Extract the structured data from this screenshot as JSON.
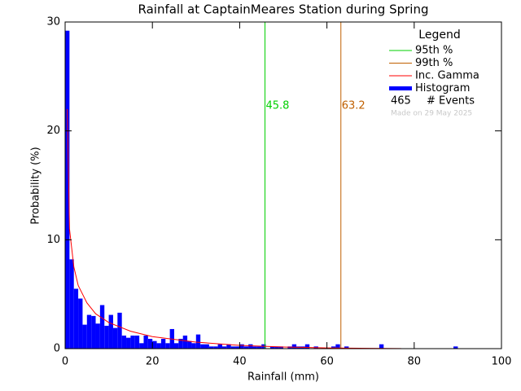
{
  "chart_data": {
    "type": "histogram",
    "title": "Rainfall at CaptainMeares Station during Spring",
    "xlabel": "Rainfall (mm)",
    "ylabel": "Probability (%)",
    "bins": [
      0,
      1,
      2,
      3,
      4,
      5,
      6,
      7,
      8,
      9,
      10,
      11,
      12,
      13,
      14,
      15,
      16,
      17,
      18,
      19,
      20,
      21,
      22,
      23,
      24,
      25,
      26,
      27,
      28,
      29,
      30,
      31,
      32,
      33,
      34,
      35,
      36,
      37,
      38,
      39,
      40,
      41,
      42,
      43,
      44,
      45,
      46,
      47,
      48,
      49,
      50,
      51,
      52,
      53,
      54,
      55,
      56,
      57,
      58,
      59,
      60,
      61,
      62,
      63,
      64,
      65,
      66,
      67,
      68,
      69,
      70,
      71,
      72,
      73,
      74,
      75,
      76,
      77,
      78,
      79,
      80,
      81,
      82,
      83,
      84,
      85,
      86,
      87,
      88,
      89,
      90,
      91,
      92,
      93,
      94,
      95,
      96,
      97,
      98,
      99,
      100
    ],
    "counts": [
      29.2,
      8.2,
      5.5,
      4.6,
      2.2,
      3.1,
      3.0,
      2.3,
      4.0,
      2.1,
      3.1,
      1.9,
      3.3,
      1.2,
      1.0,
      1.2,
      1.2,
      0.5,
      1.2,
      0.9,
      0.7,
      0.5,
      0.9,
      0.5,
      1.8,
      0.5,
      0.9,
      1.2,
      0.7,
      0.5,
      1.3,
      0.4,
      0.4,
      0.2,
      0.2,
      0.4,
      0.2,
      0.4,
      0.2,
      0.2,
      0.4,
      0.2,
      0.4,
      0.2,
      0.2,
      0.4,
      0,
      0.2,
      0.2,
      0.2,
      0,
      0.2,
      0.4,
      0.2,
      0.2,
      0.4,
      0,
      0.2,
      0,
      0,
      0,
      0.2,
      0.4,
      0,
      0.2,
      0,
      0,
      0,
      0,
      0,
      0,
      0,
      0.4,
      0,
      0,
      0,
      0,
      0,
      0,
      0,
      0,
      0,
      0,
      0,
      0,
      0,
      0,
      0,
      0,
      0.2,
      0,
      0,
      0,
      0,
      0,
      0,
      0,
      0,
      0,
      0
    ],
    "color": "#0000ff",
    "legend_name": "Histogram",
    "xlim": [
      0,
      100
    ],
    "ylim": [
      0,
      30
    ],
    "xticks": [
      0,
      20,
      40,
      60,
      80,
      100
    ],
    "yticks": [
      0,
      10,
      20,
      30
    ],
    "curve": {
      "name": "Inc. Gamma",
      "color": "#ff0000",
      "x": [
        0.5,
        1,
        2,
        3,
        5,
        7,
        10,
        15,
        20,
        30,
        40,
        50,
        60,
        70,
        77
      ],
      "y": [
        22,
        11,
        7.5,
        5.8,
        4.2,
        3.2,
        2.4,
        1.6,
        1.1,
        0.6,
        0.3,
        0.15,
        0.07,
        0.03,
        0.01
      ]
    },
    "percentiles": [
      {
        "name": "95th %",
        "value": 45.8,
        "color": "#00d000"
      },
      {
        "name": "99th %",
        "value": 63.2,
        "color": "#c06000"
      }
    ],
    "legend_title": "Legend",
    "legend_position": "upper right",
    "events_count": 465,
    "events_label": "# Events",
    "footnote": "Made on 29 May 2025"
  }
}
